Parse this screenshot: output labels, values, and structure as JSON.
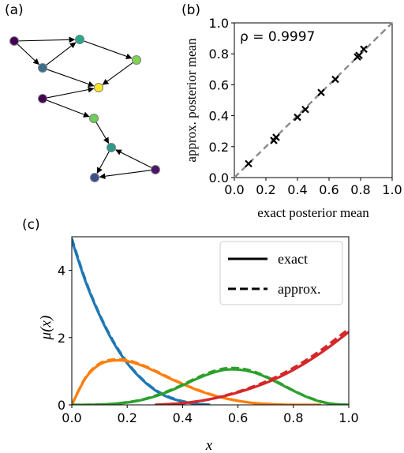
{
  "panels": {
    "a": {
      "label": "(a)",
      "nodes": [
        {
          "id": 0,
          "color": "#440154"
        },
        {
          "id": 1,
          "color": "#26a88a"
        },
        {
          "id": 2,
          "color": "#3b6f8e"
        },
        {
          "id": 3,
          "color": "#7fd34e"
        },
        {
          "id": 4,
          "color": "#440154"
        },
        {
          "id": 5,
          "color": "#fde725"
        },
        {
          "id": 6,
          "color": "#6ccd59"
        },
        {
          "id": 7,
          "color": "#2a9a89"
        },
        {
          "id": 8,
          "color": "#3d4f8a"
        },
        {
          "id": 9,
          "color": "#4b1467"
        }
      ],
      "edges": [
        [
          0,
          1
        ],
        [
          0,
          2
        ],
        [
          2,
          1
        ],
        [
          1,
          3
        ],
        [
          2,
          5
        ],
        [
          4,
          5
        ],
        [
          4,
          6
        ],
        [
          3,
          5
        ],
        [
          6,
          7
        ],
        [
          9,
          7
        ],
        [
          7,
          8
        ],
        [
          9,
          8
        ]
      ]
    },
    "b": {
      "label": "(b)",
      "annotation": "ρ = 0.9997",
      "chart_data": {
        "type": "scatter",
        "xlabel": "exact posterior mean",
        "ylabel": "approx. posterior mean",
        "xlim": [
          0.0,
          1.0
        ],
        "ylim": [
          0.0,
          1.0
        ],
        "xticks": [
          "0.0",
          "0.2",
          "0.4",
          "0.6",
          "0.8",
          "1.0"
        ],
        "yticks": [
          "0.0",
          "0.2",
          "0.4",
          "0.6",
          "0.8",
          "1.0"
        ],
        "points": [
          {
            "x": 0.09,
            "y": 0.09
          },
          {
            "x": 0.25,
            "y": 0.24
          },
          {
            "x": 0.265,
            "y": 0.26
          },
          {
            "x": 0.4,
            "y": 0.39
          },
          {
            "x": 0.45,
            "y": 0.44
          },
          {
            "x": 0.55,
            "y": 0.55
          },
          {
            "x": 0.64,
            "y": 0.635
          },
          {
            "x": 0.78,
            "y": 0.78
          },
          {
            "x": 0.79,
            "y": 0.79
          },
          {
            "x": 0.82,
            "y": 0.83
          }
        ],
        "reference_line": {
          "style": "dashed",
          "color": "#8a8a8a"
        },
        "grid": false,
        "marker": "x"
      }
    },
    "c": {
      "label": "(c)",
      "chart_data": {
        "type": "line",
        "xlabel": "x",
        "ylabel": "μ(x)",
        "xlim": [
          0.0,
          1.0
        ],
        "ylim": [
          0,
          5
        ],
        "xticks": [
          "0.0",
          "0.2",
          "0.4",
          "0.6",
          "0.8",
          "1.0"
        ],
        "yticks": [
          "0",
          "2",
          "4"
        ],
        "legend": {
          "placement": "top-right",
          "entries": [
            {
              "label": "exact",
              "style": "solid"
            },
            {
              "label": "approx.",
              "style": "dashed"
            }
          ]
        },
        "series": [
          {
            "color": "#1f77b4",
            "kind": "blue",
            "x": [
              0.0,
              0.05,
              0.1,
              0.15,
              0.2,
              0.25,
              0.3,
              0.35,
              0.4,
              0.45,
              0.5
            ],
            "exact": [
              4.9,
              3.66,
              2.67,
              1.86,
              1.24,
              0.78,
              0.44,
              0.22,
              0.1,
              0.03,
              0.0
            ],
            "approx": [
              4.95,
              3.7,
              2.7,
              1.89,
              1.27,
              0.8,
              0.46,
              0.24,
              0.11,
              0.04,
              0.0
            ]
          },
          {
            "color": "#ff7f0e",
            "kind": "orange",
            "x": [
              0.0,
              0.05,
              0.1,
              0.15,
              0.2,
              0.25,
              0.3,
              0.35,
              0.4,
              0.45,
              0.5,
              0.55,
              0.6,
              0.65,
              0.7,
              0.75,
              0.8,
              0.85,
              0.9
            ],
            "exact": [
              0.0,
              0.8,
              1.2,
              1.32,
              1.3,
              1.18,
              1.0,
              0.8,
              0.62,
              0.45,
              0.31,
              0.2,
              0.12,
              0.06,
              0.03,
              0.01,
              0.0,
              0.0,
              0.0
            ],
            "approx": [
              0.0,
              0.82,
              1.23,
              1.35,
              1.33,
              1.2,
              1.02,
              0.82,
              0.63,
              0.46,
              0.32,
              0.21,
              0.12,
              0.06,
              0.03,
              0.01,
              0.0,
              0.0,
              0.0
            ]
          },
          {
            "color": "#2ca02c",
            "kind": "green",
            "x": [
              0.0,
              0.05,
              0.1,
              0.15,
              0.2,
              0.25,
              0.3,
              0.35,
              0.4,
              0.45,
              0.5,
              0.55,
              0.6,
              0.65,
              0.7,
              0.75,
              0.8,
              0.85,
              0.9,
              0.95,
              1.0
            ],
            "exact": [
              0.0,
              0.0,
              0.01,
              0.03,
              0.07,
              0.14,
              0.25,
              0.4,
              0.58,
              0.77,
              0.93,
              1.04,
              1.05,
              0.98,
              0.83,
              0.63,
              0.42,
              0.23,
              0.09,
              0.02,
              0.0
            ],
            "approx": [
              0.0,
              0.0,
              0.01,
              0.03,
              0.08,
              0.15,
              0.27,
              0.42,
              0.6,
              0.8,
              0.97,
              1.08,
              1.09,
              1.01,
              0.85,
              0.65,
              0.43,
              0.24,
              0.1,
              0.02,
              0.0
            ]
          },
          {
            "color": "#d62728",
            "kind": "red",
            "x": [
              0.3,
              0.35,
              0.4,
              0.45,
              0.5,
              0.55,
              0.6,
              0.65,
              0.7,
              0.75,
              0.8,
              0.85,
              0.9,
              0.95,
              1.0
            ],
            "exact": [
              0.0,
              0.02,
              0.05,
              0.1,
              0.17,
              0.26,
              0.37,
              0.5,
              0.65,
              0.83,
              1.04,
              1.28,
              1.55,
              1.85,
              2.17
            ],
            "approx": [
              0.0,
              0.02,
              0.05,
              0.1,
              0.17,
              0.27,
              0.39,
              0.53,
              0.69,
              0.88,
              1.1,
              1.35,
              1.63,
              1.94,
              2.26
            ]
          }
        ]
      }
    }
  }
}
